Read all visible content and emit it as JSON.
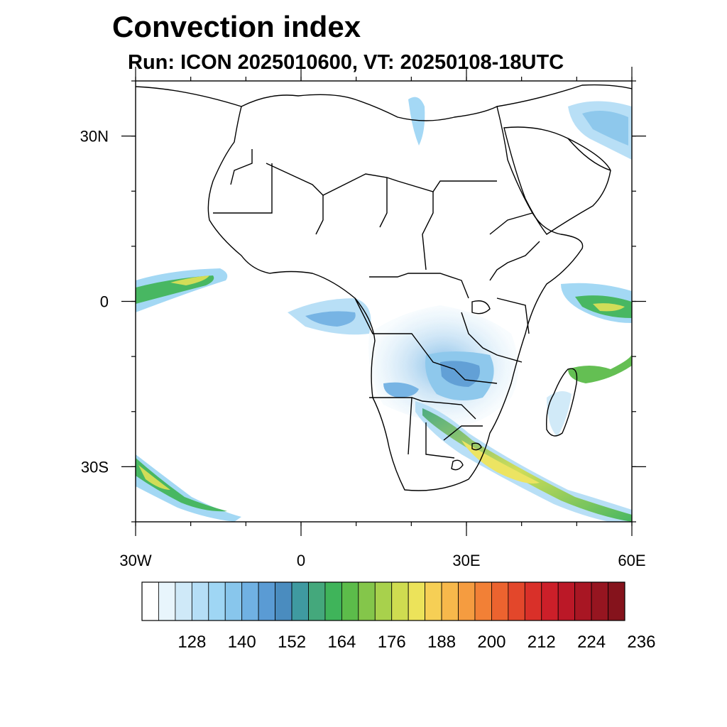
{
  "title": "Convection index",
  "subtitle": "Run: ICON 2025010600,  VT: 20250108-18UTC",
  "map": {
    "lon_range": [
      -30,
      60
    ],
    "lat_range": [
      -40,
      40
    ],
    "y_ticks": [
      {
        "lat": 30,
        "label": "30N"
      },
      {
        "lat": 0,
        "label": "0"
      },
      {
        "lat": -30,
        "label": "30S"
      }
    ],
    "x_ticks": [
      {
        "lon": -30,
        "label": "30W"
      },
      {
        "lon": 0,
        "label": "0"
      },
      {
        "lon": 30,
        "label": "30E"
      },
      {
        "lon": 60,
        "label": "60E"
      }
    ]
  },
  "colorbar": {
    "labels": [
      "128",
      "140",
      "152",
      "164",
      "176",
      "188",
      "200",
      "212",
      "224",
      "236"
    ],
    "colors": [
      "#ffffff",
      "#e8f5fc",
      "#cfe9f8",
      "#b5def6",
      "#9fd6f4",
      "#88c6ec",
      "#70b1e3",
      "#5a9bd4",
      "#4a8cbf",
      "#3f9aa0",
      "#44a87c",
      "#3fb45a",
      "#5cbc4a",
      "#84c64a",
      "#a8d14c",
      "#cfdc50",
      "#ece35a",
      "#f6cf55",
      "#f7b84b",
      "#f59c40",
      "#f28036",
      "#ec632f",
      "#e3472b",
      "#d93029",
      "#cc1f29",
      "#bb1827",
      "#a81623",
      "#961520",
      "#85131c"
    ]
  }
}
